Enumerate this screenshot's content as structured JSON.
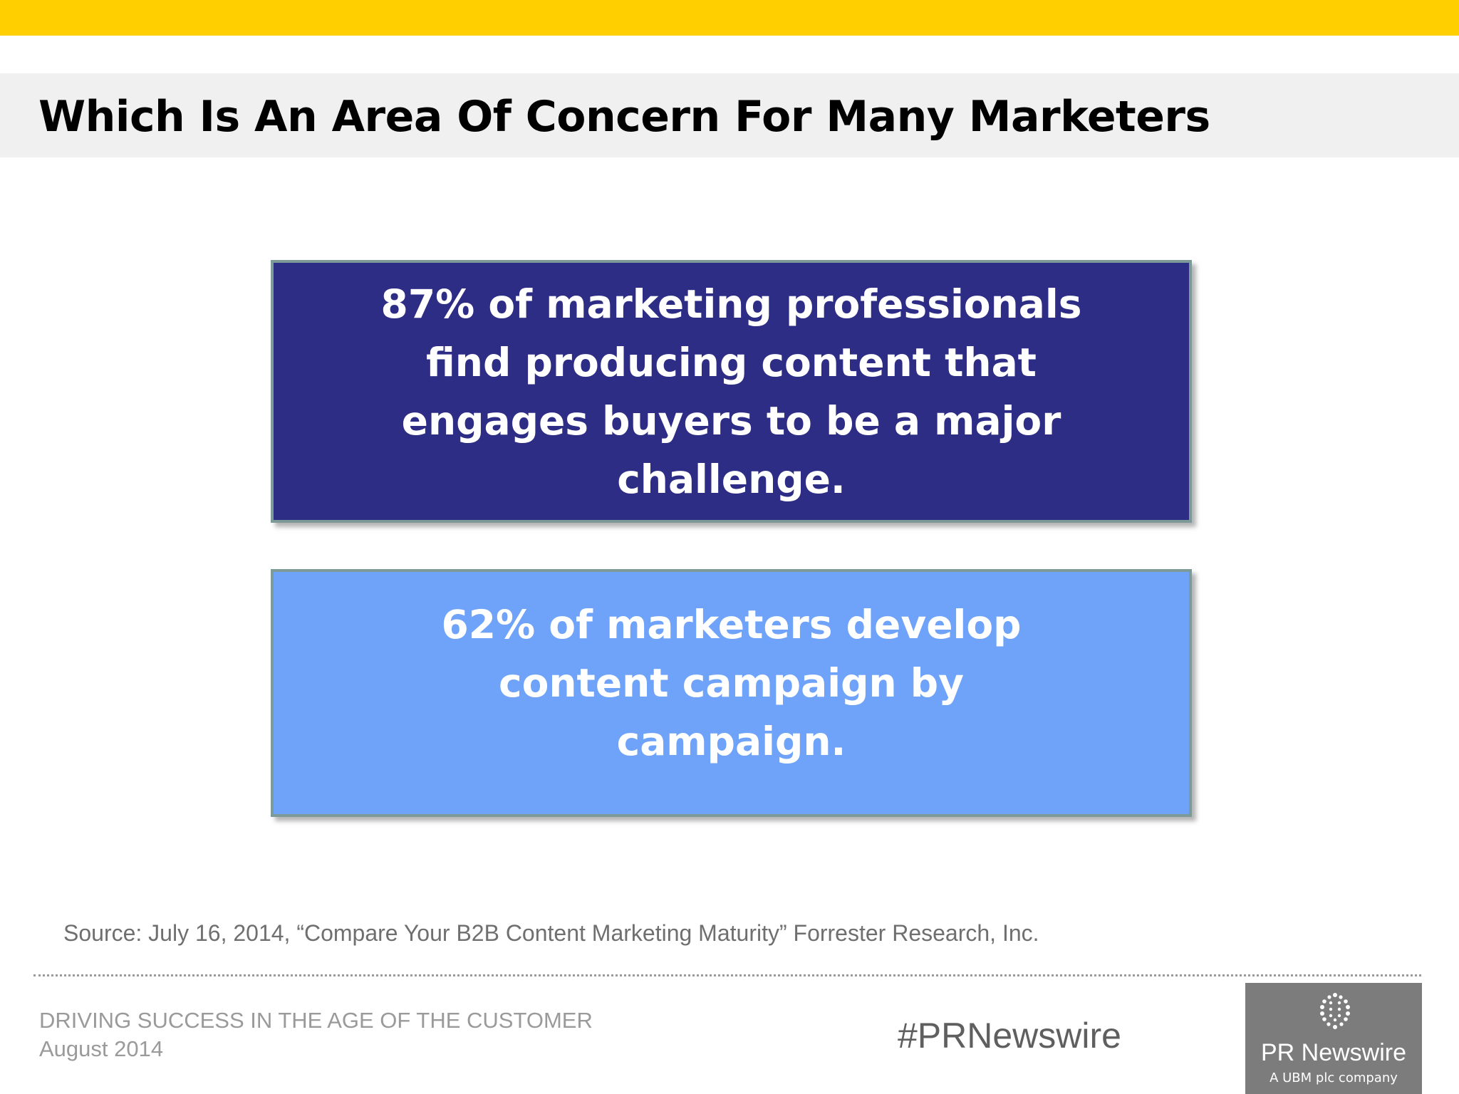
{
  "slide": {
    "title": "Which Is An Area Of Concern For Many Marketers"
  },
  "stats": [
    {
      "text": "87% of marketing professionals find producing content that engages buyers to be a major challenge.",
      "color": "#2E2D86"
    },
    {
      "text": "62% of marketers develop content campaign by campaign.",
      "color": "#6FA3F9"
    }
  ],
  "source": "Source: July 16, 2014, “Compare Your B2B Content Marketing Maturity” Forrester Research, Inc.",
  "footer": {
    "report_title": "DRIVING SUCCESS IN THE AGE OF THE CUSTOMER",
    "date": "August 2014",
    "hashtag": "#PRNewswire",
    "logo": {
      "icon": "pr-newswire-dots-icon",
      "name": "PR Newswire",
      "tagline": "A UBM plc company"
    }
  },
  "colors": {
    "accent_bar": "#FFCF00",
    "title_band": "#F0F0F0",
    "logo_bg": "#7C7C7C"
  }
}
